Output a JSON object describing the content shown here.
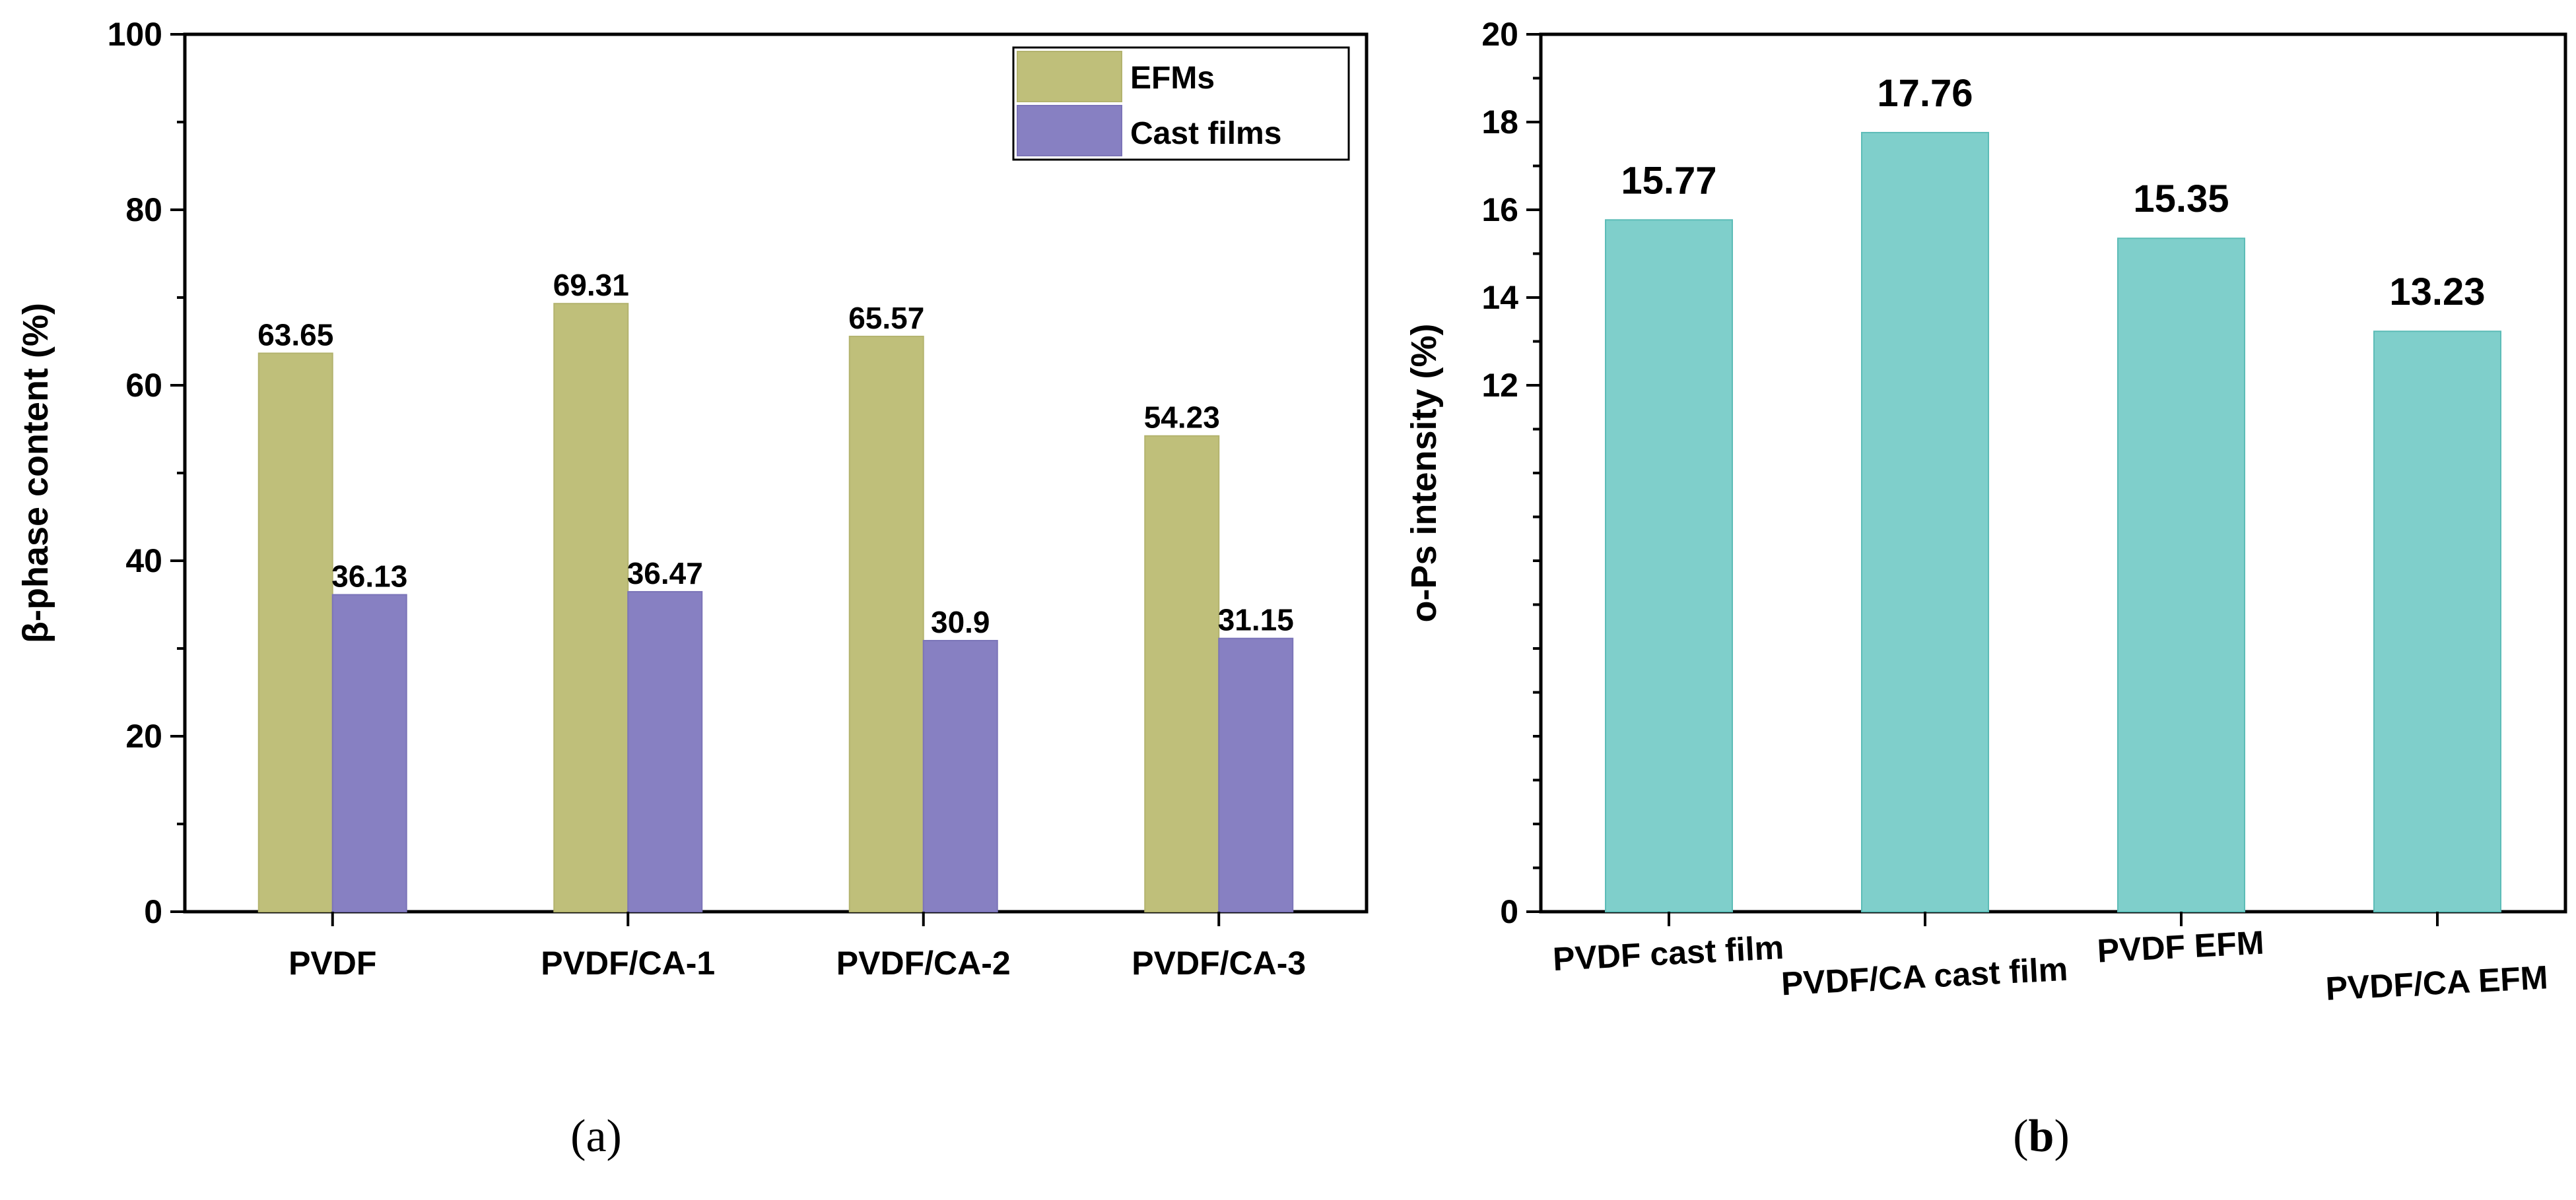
{
  "chart_data": [
    {
      "type": "bar",
      "panel_label": "a",
      "ylabel": "β-phase content (%)",
      "xlabel": "",
      "ylim": [
        0,
        100
      ],
      "yticks": [
        "0",
        "20",
        "40",
        "60",
        "80",
        "100"
      ],
      "categories": [
        "PVDF",
        "PVDF/CA-1",
        "PVDF/CA-2",
        "PVDF/CA-3"
      ],
      "series": [
        {
          "name": "EFMs",
          "color": "#bfbf7a",
          "values": [
            63.65,
            69.31,
            65.57,
            54.23
          ],
          "labels": [
            "63.65",
            "69.31",
            "65.57",
            "54.23"
          ]
        },
        {
          "name": "Cast films",
          "color": "#8780c2",
          "values": [
            36.13,
            36.47,
            30.9,
            31.15
          ],
          "labels": [
            "36.13",
            "36.47",
            "30.9",
            "31.15"
          ]
        }
      ],
      "legend_position": "top-right"
    },
    {
      "type": "bar",
      "panel_label": "b",
      "ylabel": "o-Ps intensity (%)",
      "xlabel": "",
      "ylim": [
        0,
        20
      ],
      "yticks": [
        "0",
        "12",
        "14",
        "16",
        "18",
        "20"
      ],
      "categories": [
        "PVDF cast film",
        "PVDF/CA cast film",
        "PVDF EFM",
        "PVDF/CA EFM"
      ],
      "series": [
        {
          "name": "o-Ps intensity",
          "color": "#7fcfcb",
          "values": [
            15.77,
            17.76,
            15.35,
            13.23
          ],
          "labels": [
            "15.77",
            "17.76",
            "15.35",
            "13.23"
          ]
        }
      ]
    }
  ],
  "panel_labels": {
    "a": "(a)",
    "b_open": "(",
    "b_letter": "b",
    "b_close": ")"
  }
}
